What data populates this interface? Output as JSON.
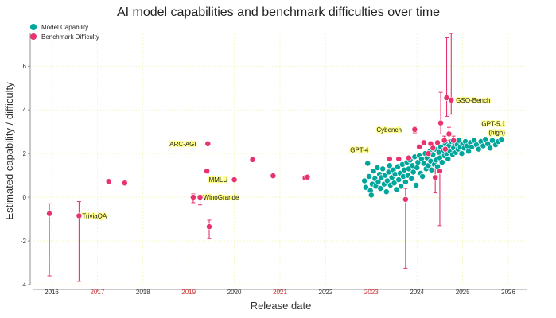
{
  "chart_data": {
    "type": "scatter",
    "title": "AI model capabilities and benchmark difficulties over time",
    "xlabel": "Release date",
    "ylabel": "Estimated capability / difficulty",
    "xlim": [
      2015.6,
      2026.4
    ],
    "ylim": [
      -4,
      7.5
    ],
    "x_ticks": [
      2016,
      2017,
      2018,
      2019,
      2020,
      2021,
      2022,
      2023,
      2024,
      2025,
      2026
    ],
    "y_ticks": [
      -4,
      -2,
      0,
      2,
      4,
      6
    ],
    "grid": true,
    "legend_position": "top-left",
    "series": [
      {
        "name": "Model Capability",
        "color": "#00a59b",
        "points": [
          [
            2022.85,
            0.75
          ],
          [
            2022.88,
            0.45
          ],
          [
            2022.92,
            1.55
          ],
          [
            2022.95,
            0.95
          ],
          [
            2022.98,
            0.3
          ],
          [
            2023.0,
            0.1
          ],
          [
            2023.02,
            0.6
          ],
          [
            2023.05,
            1.2
          ],
          [
            2023.08,
            0.85
          ],
          [
            2023.1,
            0.5
          ],
          [
            2023.13,
            1.35
          ],
          [
            2023.15,
            0.7
          ],
          [
            2023.18,
            1.05
          ],
          [
            2023.2,
            0.4
          ],
          [
            2023.22,
            0.9
          ],
          [
            2023.25,
            1.3
          ],
          [
            2023.28,
            0.6
          ],
          [
            2023.3,
            1.0
          ],
          [
            2023.33,
            0.25
          ],
          [
            2023.35,
            0.75
          ],
          [
            2023.38,
            1.15
          ],
          [
            2023.4,
            1.45
          ],
          [
            2023.42,
            0.55
          ],
          [
            2023.45,
            0.9
          ],
          [
            2023.48,
            1.25
          ],
          [
            2023.5,
            0.65
          ],
          [
            2023.52,
            1.05
          ],
          [
            2023.55,
            0.35
          ],
          [
            2023.58,
            1.4
          ],
          [
            2023.6,
            0.8
          ],
          [
            2023.63,
            1.1
          ],
          [
            2023.65,
            0.5
          ],
          [
            2023.68,
            1.5
          ],
          [
            2023.7,
            0.95
          ],
          [
            2023.72,
            1.25
          ],
          [
            2023.75,
            0.7
          ],
          [
            2023.78,
            1.6
          ],
          [
            2023.8,
            1.0
          ],
          [
            2023.82,
            1.3
          ],
          [
            2023.85,
            1.7
          ],
          [
            2023.88,
            0.85
          ],
          [
            2023.9,
            1.45
          ],
          [
            2023.92,
            1.15
          ],
          [
            2023.95,
            1.85
          ],
          [
            2023.98,
            0.55
          ],
          [
            2024.0,
            1.35
          ],
          [
            2024.02,
            1.6
          ],
          [
            2024.05,
            1.9
          ],
          [
            2024.08,
            1.1
          ],
          [
            2024.1,
            1.75
          ],
          [
            2024.12,
            0.95
          ],
          [
            2024.15,
            1.55
          ],
          [
            2024.18,
            2.0
          ],
          [
            2024.2,
            1.3
          ],
          [
            2024.22,
            1.8
          ],
          [
            2024.25,
            1.45
          ],
          [
            2024.28,
            2.1
          ],
          [
            2024.3,
            1.65
          ],
          [
            2024.32,
            1.25
          ],
          [
            2024.35,
            1.95
          ],
          [
            2024.38,
            1.5
          ],
          [
            2024.4,
            2.2
          ],
          [
            2024.42,
            1.7
          ],
          [
            2024.45,
            1.4
          ],
          [
            2024.48,
            2.05
          ],
          [
            2024.5,
            1.8
          ],
          [
            2024.52,
            2.3
          ],
          [
            2024.55,
            1.6
          ],
          [
            2024.58,
            2.15
          ],
          [
            2024.6,
            1.9
          ],
          [
            2024.62,
            2.45
          ],
          [
            2024.65,
            2.0
          ],
          [
            2024.68,
            1.75
          ],
          [
            2024.7,
            2.35
          ],
          [
            2024.72,
            2.1
          ],
          [
            2024.75,
            2.55
          ],
          [
            2024.78,
            1.95
          ],
          [
            2024.8,
            2.25
          ],
          [
            2024.82,
            2.5
          ],
          [
            2024.85,
            2.05
          ],
          [
            2024.88,
            2.4
          ],
          [
            2024.9,
            2.2
          ],
          [
            2024.92,
            2.6
          ],
          [
            2024.95,
            2.3
          ],
          [
            2024.98,
            2.0
          ],
          [
            2025.0,
            2.45
          ],
          [
            2025.03,
            2.25
          ],
          [
            2025.06,
            2.55
          ],
          [
            2025.1,
            2.35
          ],
          [
            2025.13,
            2.1
          ],
          [
            2025.17,
            2.5
          ],
          [
            2025.2,
            2.3
          ],
          [
            2025.25,
            2.6
          ],
          [
            2025.3,
            2.4
          ],
          [
            2025.35,
            2.2
          ],
          [
            2025.4,
            2.55
          ],
          [
            2025.45,
            2.35
          ],
          [
            2025.5,
            2.65
          ],
          [
            2025.55,
            2.45
          ],
          [
            2025.6,
            2.25
          ],
          [
            2025.65,
            2.6
          ],
          [
            2025.72,
            2.4
          ],
          [
            2025.78,
            2.55
          ],
          [
            2025.85,
            2.65
          ]
        ]
      },
      {
        "name": "Benchmark Difficulty",
        "color": "#e8336e",
        "points": [
          {
            "x": 2015.95,
            "y": -0.75,
            "lo": -3.6,
            "hi": -0.3
          },
          {
            "x": 2016.6,
            "y": -0.85,
            "lo": -3.85,
            "hi": -0.2
          },
          {
            "x": 2017.25,
            "y": 0.72,
            "lo": 0.62,
            "hi": 0.82
          },
          {
            "x": 2017.6,
            "y": 0.65,
            "lo": 0.55,
            "hi": 0.75
          },
          {
            "x": 2019.1,
            "y": 0.0,
            "lo": -0.25,
            "hi": 0.15
          },
          {
            "x": 2019.25,
            "y": 0.0,
            "lo": -0.35,
            "hi": 0.1
          },
          {
            "x": 2019.4,
            "y": 1.2,
            "lo": 1.1,
            "hi": 1.3
          },
          {
            "x": 2019.42,
            "y": 2.45,
            "lo": 2.38,
            "hi": 2.52
          },
          {
            "x": 2019.45,
            "y": -1.35,
            "lo": -1.9,
            "hi": -1.05
          },
          {
            "x": 2020.0,
            "y": 0.8,
            "lo": 0.72,
            "hi": 0.88
          },
          {
            "x": 2020.4,
            "y": 1.72,
            "lo": 1.65,
            "hi": 1.8
          },
          {
            "x": 2020.85,
            "y": 0.98,
            "lo": 0.9,
            "hi": 1.05
          },
          {
            "x": 2021.55,
            "y": 0.88,
            "lo": 0.8,
            "hi": 0.95
          },
          {
            "x": 2021.6,
            "y": 0.92,
            "lo": 0.85,
            "hi": 1.0
          },
          {
            "x": 2023.4,
            "y": 1.75,
            "lo": 1.68,
            "hi": 1.82
          },
          {
            "x": 2023.6,
            "y": 1.75,
            "lo": 1.68,
            "hi": 1.82
          },
          {
            "x": 2023.75,
            "y": -0.1,
            "lo": -3.25,
            "hi": 0.4
          },
          {
            "x": 2023.82,
            "y": 1.8,
            "lo": 1.72,
            "hi": 1.88
          },
          {
            "x": 2023.95,
            "y": 3.1,
            "lo": 2.95,
            "hi": 3.25
          },
          {
            "x": 2024.05,
            "y": 2.3,
            "lo": 2.2,
            "hi": 2.4
          },
          {
            "x": 2024.15,
            "y": 2.5,
            "lo": 2.4,
            "hi": 2.6
          },
          {
            "x": 2024.25,
            "y": 2.0,
            "lo": 1.9,
            "hi": 2.1
          },
          {
            "x": 2024.3,
            "y": 2.45,
            "lo": 2.35,
            "hi": 2.55
          },
          {
            "x": 2024.35,
            "y": 2.25,
            "lo": 2.15,
            "hi": 2.35
          },
          {
            "x": 2024.4,
            "y": 0.9,
            "lo": 0.2,
            "hi": 1.3
          },
          {
            "x": 2024.45,
            "y": 2.5,
            "lo": 2.4,
            "hi": 2.6
          },
          {
            "x": 2024.5,
            "y": 1.2,
            "lo": -1.3,
            "hi": 1.9
          },
          {
            "x": 2024.52,
            "y": 3.4,
            "lo": 2.9,
            "hi": 4.8
          },
          {
            "x": 2024.6,
            "y": 2.6,
            "lo": 2.4,
            "hi": 2.8
          },
          {
            "x": 2024.62,
            "y": 2.2,
            "lo": 2.0,
            "hi": 2.4
          },
          {
            "x": 2024.65,
            "y": 4.55,
            "lo": 3.7,
            "hi": 7.3
          },
          {
            "x": 2024.7,
            "y": 2.9,
            "lo": 2.6,
            "hi": 3.2
          },
          {
            "x": 2024.75,
            "y": 4.45,
            "lo": 3.8,
            "hi": 7.5
          },
          {
            "x": 2024.8,
            "y": 2.6,
            "lo": 2.4,
            "hi": 2.8
          }
        ]
      }
    ],
    "annotations": [
      {
        "text": "TriviaQA",
        "x": 2016.6,
        "y": -0.85,
        "dx": 4,
        "dy": 3
      },
      {
        "text": "ARC-AGI",
        "x": 2019.42,
        "y": 2.45,
        "dx": -48,
        "dy": 3
      },
      {
        "text": "WinoGrande",
        "x": 2019.25,
        "y": 0.0,
        "dx": 4,
        "dy": 3
      },
      {
        "text": "MMLU",
        "x": 2020.0,
        "y": 0.8,
        "dx": -32,
        "dy": 3
      },
      {
        "text": "GPT-4",
        "x": 2022.92,
        "y": 1.55,
        "dx": -22,
        "dy": -14
      },
      {
        "text": "Cybench",
        "x": 2023.95,
        "y": 3.1,
        "dx": -48,
        "dy": 3
      },
      {
        "text": "GSO-Bench",
        "x": 2024.75,
        "y": 4.45,
        "dx": 6,
        "dy": 3
      },
      {
        "text": "GPT-5.1",
        "x": 2025.85,
        "y": 2.65,
        "dx": -25,
        "dy": -17
      },
      {
        "text": "(high)",
        "x": 2025.85,
        "y": 2.65,
        "dx": -16,
        "dy": -6
      }
    ]
  }
}
